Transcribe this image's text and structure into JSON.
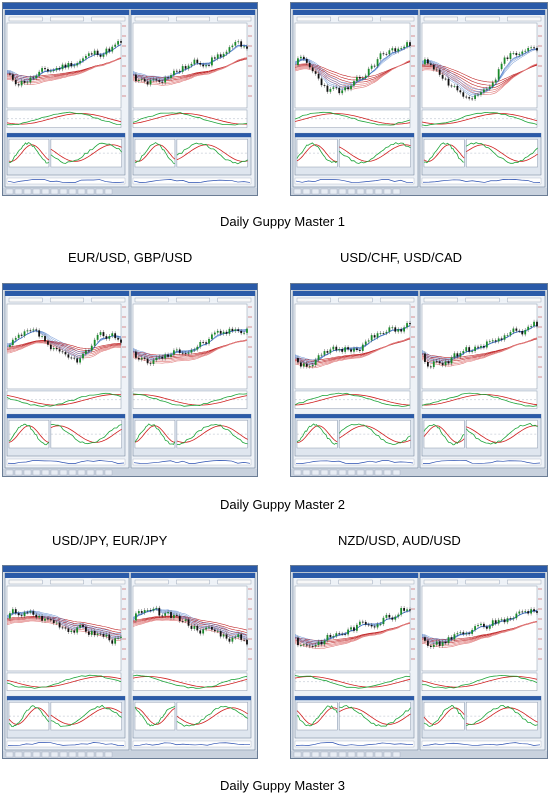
{
  "captions": {
    "master1": "Daily Guppy Master 1",
    "master2": "Daily Guppy Master 2",
    "master3": "Daily Guppy Master 3"
  },
  "pairs": {
    "row2_left": "EUR/USD, GBP/USD",
    "row2_right": "USD/CHF, USD/CAD",
    "row3_left": "USD/JPY, EUR/JPY",
    "row3_right": "NZD/USD, AUD/USD"
  },
  "colors": {
    "frame": "#6b7d95",
    "title_bar": "#2a5aa8",
    "chart_bg": "#ffffff",
    "long_ma": "#c0282a",
    "short_ma": "#3b6fc4",
    "candle_up": "#1a8a2a",
    "candle_down": "#111111",
    "osc_green": "#1ea53a",
    "osc_red": "#d02020"
  }
}
